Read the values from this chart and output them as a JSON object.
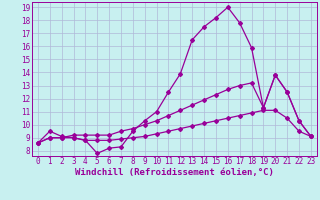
{
  "background_color": "#c8f0f0",
  "grid_color": "#b0b8d8",
  "line_color": "#990099",
  "xlabel": "Windchill (Refroidissement éolien,°C)",
  "xlim": [
    -0.5,
    23.5
  ],
  "ylim": [
    7.6,
    19.4
  ],
  "xticks": [
    0,
    1,
    2,
    3,
    4,
    5,
    6,
    7,
    8,
    9,
    10,
    11,
    12,
    13,
    14,
    15,
    16,
    17,
    18,
    19,
    20,
    21,
    22,
    23
  ],
  "yticks": [
    8,
    9,
    10,
    11,
    12,
    13,
    14,
    15,
    16,
    17,
    18,
    19
  ],
  "line1_x": [
    0,
    1,
    2,
    3,
    4,
    5,
    6,
    7,
    8,
    9,
    10,
    11,
    12,
    13,
    14,
    15,
    16,
    17,
    18,
    19,
    20,
    21,
    22,
    23
  ],
  "line1_y": [
    8.6,
    9.5,
    9.1,
    9.0,
    8.8,
    7.8,
    8.2,
    8.3,
    9.5,
    10.3,
    11.0,
    12.5,
    13.9,
    16.5,
    17.5,
    18.2,
    19.0,
    17.8,
    15.9,
    11.3,
    13.8,
    12.5,
    10.3,
    9.1
  ],
  "line2_x": [
    0,
    1,
    2,
    3,
    4,
    5,
    6,
    7,
    8,
    9,
    10,
    11,
    12,
    13,
    14,
    15,
    16,
    17,
    18,
    19,
    20,
    21,
    22,
    23
  ],
  "line2_y": [
    8.6,
    9.0,
    9.0,
    9.2,
    9.2,
    9.2,
    9.2,
    9.5,
    9.7,
    10.0,
    10.3,
    10.7,
    11.1,
    11.5,
    11.9,
    12.3,
    12.7,
    13.0,
    13.2,
    11.3,
    13.8,
    12.5,
    10.3,
    9.1
  ],
  "line3_x": [
    0,
    1,
    2,
    3,
    4,
    5,
    6,
    7,
    8,
    9,
    10,
    11,
    12,
    13,
    14,
    15,
    16,
    17,
    18,
    19,
    20,
    21,
    22,
    23
  ],
  "line3_y": [
    8.6,
    9.0,
    9.0,
    9.0,
    8.8,
    8.8,
    8.8,
    8.9,
    9.0,
    9.1,
    9.3,
    9.5,
    9.7,
    9.9,
    10.1,
    10.3,
    10.5,
    10.7,
    10.9,
    11.1,
    11.1,
    10.5,
    9.5,
    9.1
  ],
  "tick_fontsize": 5.5,
  "label_fontsize": 6.5
}
